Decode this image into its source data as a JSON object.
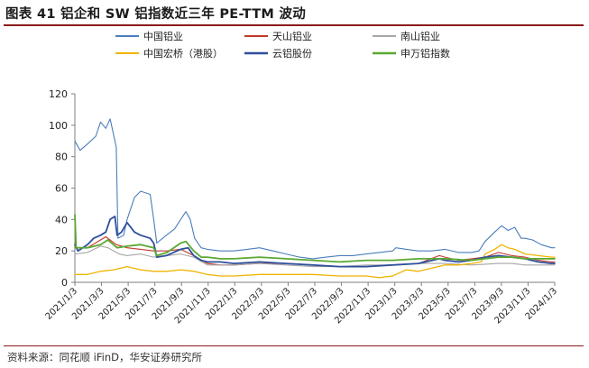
{
  "header": {
    "title": "图表 41 铝企和 SW 铝指数近三年 PE-TTM 波动"
  },
  "footer": {
    "source": "资料来源：同花顺 iFinD，华安证券研究所"
  },
  "chart_data": {
    "type": "line",
    "title": "",
    "xlabel": "",
    "ylabel": "",
    "ylim": [
      0,
      120
    ],
    "y_ticks": [
      0,
      20,
      40,
      60,
      80,
      100,
      120
    ],
    "x_tick_labels": [
      "2021/1/3",
      "2021/3/3",
      "2021/5/3",
      "2021/7/3",
      "2021/9/3",
      "2021/11/3",
      "2022/1/3",
      "2022/3/3",
      "2022/5/3",
      "2022/7/3",
      "2022/9/3",
      "2022/11/3",
      "2023/1/3",
      "2023/3/3",
      "2023/5/3",
      "2023/7/3",
      "2023/9/3",
      "2023/11/3",
      "2024/1/3"
    ],
    "grid": false,
    "legend_position": "top",
    "series": [
      {
        "name": "中国铝业",
        "color": "#4a7ebb",
        "width": 1.1,
        "points": [
          [
            "2021/1/3",
            90
          ],
          [
            "2021/1/15",
            84
          ],
          [
            "2021/2/1",
            88
          ],
          [
            "2021/2/20",
            93
          ],
          [
            "2021/3/3",
            102
          ],
          [
            "2021/3/15",
            98
          ],
          [
            "2021/3/25",
            104
          ],
          [
            "2021/4/8",
            86
          ],
          [
            "2021/4/12",
            28
          ],
          [
            "2021/4/25",
            30
          ],
          [
            "2021/5/3",
            40
          ],
          [
            "2021/5/20",
            54
          ],
          [
            "2021/6/3",
            58
          ],
          [
            "2021/6/25",
            56
          ],
          [
            "2021/7/3",
            40
          ],
          [
            "2021/7/10",
            25
          ],
          [
            "2021/8/1",
            30
          ],
          [
            "2021/8/20",
            34
          ],
          [
            "2021/9/3",
            40
          ],
          [
            "2021/9/15",
            45
          ],
          [
            "2021/9/25",
            40
          ],
          [
            "2021/10/5",
            28
          ],
          [
            "2021/10/20",
            22
          ],
          [
            "2021/11/3",
            21
          ],
          [
            "2021/12/3",
            20
          ],
          [
            "2022/1/3",
            20
          ],
          [
            "2022/2/3",
            21
          ],
          [
            "2022/3/3",
            22
          ],
          [
            "2022/4/3",
            20
          ],
          [
            "2022/5/3",
            18
          ],
          [
            "2022/6/3",
            16
          ],
          [
            "2022/7/3",
            15
          ],
          [
            "2022/8/3",
            16
          ],
          [
            "2022/9/3",
            17
          ],
          [
            "2022/10/3",
            17
          ],
          [
            "2022/11/3",
            18
          ],
          [
            "2022/12/3",
            19
          ],
          [
            "2023/1/3",
            20
          ],
          [
            "2023/1/10",
            22
          ],
          [
            "2023/2/3",
            21
          ],
          [
            "2023/3/3",
            20
          ],
          [
            "2023/4/3",
            20
          ],
          [
            "2023/5/3",
            21
          ],
          [
            "2023/6/3",
            19
          ],
          [
            "2023/7/3",
            19
          ],
          [
            "2023/7/20",
            20
          ],
          [
            "2023/8/3",
            26
          ],
          [
            "2023/8/25",
            32
          ],
          [
            "2023/9/10",
            36
          ],
          [
            "2023/9/25",
            33
          ],
          [
            "2023/10/10",
            35
          ],
          [
            "2023/10/25",
            28
          ],
          [
            "2023/11/3",
            28
          ],
          [
            "2023/11/20",
            27
          ],
          [
            "2023/12/10",
            24
          ],
          [
            "2024/1/3",
            22
          ],
          [
            "2024/1/10",
            22
          ]
        ]
      },
      {
        "name": "天山铝业",
        "color": "#c0392b",
        "width": 1.1,
        "points": [
          [
            "2021/1/3",
            22
          ],
          [
            "2021/2/1",
            22
          ],
          [
            "2021/3/3",
            27
          ],
          [
            "2021/3/15",
            29
          ],
          [
            "2021/4/8",
            24
          ],
          [
            "2021/5/3",
            22
          ],
          [
            "2021/6/3",
            21
          ],
          [
            "2021/7/3",
            20
          ],
          [
            "2021/8/3",
            20
          ],
          [
            "2021/9/3",
            21
          ],
          [
            "2021/10/3",
            17
          ],
          [
            "2021/11/3",
            12
          ],
          [
            "2021/12/3",
            11
          ],
          [
            "2022/1/3",
            11
          ],
          [
            "2022/3/3",
            12
          ],
          [
            "2022/5/3",
            12
          ],
          [
            "2022/7/3",
            11
          ],
          [
            "2022/9/3",
            10
          ],
          [
            "2022/11/3",
            10
          ],
          [
            "2023/1/3",
            11
          ],
          [
            "2023/3/3",
            12
          ],
          [
            "2023/4/20",
            17
          ],
          [
            "2023/5/3",
            16
          ],
          [
            "2023/6/3",
            14
          ],
          [
            "2023/7/3",
            15
          ],
          [
            "2023/8/3",
            16
          ],
          [
            "2023/9/3",
            19
          ],
          [
            "2023/10/3",
            17
          ],
          [
            "2023/11/3",
            16
          ],
          [
            "2023/12/3",
            14
          ],
          [
            "2024/1/3",
            13
          ],
          [
            "2024/1/10",
            13
          ]
        ]
      },
      {
        "name": "南山铝业",
        "color": "#a6a6a6",
        "width": 1.1,
        "points": [
          [
            "2021/1/3",
            18
          ],
          [
            "2021/2/1",
            19
          ],
          [
            "2021/3/3",
            23
          ],
          [
            "2021/3/20",
            22
          ],
          [
            "2021/4/15",
            18
          ],
          [
            "2021/5/3",
            17
          ],
          [
            "2021/6/3",
            18
          ],
          [
            "2021/7/3",
            16
          ],
          [
            "2021/8/3",
            17
          ],
          [
            "2021/9/3",
            18
          ],
          [
            "2021/10/3",
            16
          ],
          [
            "2021/11/3",
            11
          ],
          [
            "2021/12/3",
            11
          ],
          [
            "2022/1/3",
            11
          ],
          [
            "2022/3/3",
            12
          ],
          [
            "2022/5/3",
            11
          ],
          [
            "2022/7/3",
            10
          ],
          [
            "2022/9/3",
            10
          ],
          [
            "2022/11/3",
            11
          ],
          [
            "2023/1/3",
            11
          ],
          [
            "2023/3/3",
            12
          ],
          [
            "2023/5/3",
            12
          ],
          [
            "2023/7/3",
            11
          ],
          [
            "2023/9/3",
            12
          ],
          [
            "2023/10/3",
            12
          ],
          [
            "2023/11/3",
            11
          ],
          [
            "2023/12/3",
            11
          ],
          [
            "2024/1/3",
            11
          ],
          [
            "2024/1/10",
            11
          ]
        ]
      },
      {
        "name": "中国宏桥（港股）",
        "color": "#f0b400",
        "width": 1.3,
        "points": [
          [
            "2021/1/3",
            5
          ],
          [
            "2021/2/1",
            5
          ],
          [
            "2021/3/3",
            7
          ],
          [
            "2021/4/3",
            8
          ],
          [
            "2021/5/3",
            10
          ],
          [
            "2021/6/3",
            8
          ],
          [
            "2021/7/3",
            7
          ],
          [
            "2021/8/3",
            7
          ],
          [
            "2021/9/3",
            8
          ],
          [
            "2021/10/3",
            7
          ],
          [
            "2021/11/3",
            5
          ],
          [
            "2021/12/3",
            4
          ],
          [
            "2022/1/3",
            4
          ],
          [
            "2022/3/3",
            5
          ],
          [
            "2022/5/3",
            5
          ],
          [
            "2022/7/3",
            5
          ],
          [
            "2022/9/3",
            4
          ],
          [
            "2022/11/3",
            4
          ],
          [
            "2022/12/3",
            3
          ],
          [
            "2023/1/3",
            4
          ],
          [
            "2023/1/10",
            5
          ],
          [
            "2023/2/3",
            8
          ],
          [
            "2023/3/3",
            7
          ],
          [
            "2023/4/3",
            9
          ],
          [
            "2023/5/3",
            11
          ],
          [
            "2023/6/3",
            11
          ],
          [
            "2023/7/3",
            12
          ],
          [
            "2023/7/25",
            13
          ],
          [
            "2023/8/3",
            18
          ],
          [
            "2023/8/25",
            21
          ],
          [
            "2023/9/10",
            24
          ],
          [
            "2023/9/25",
            22
          ],
          [
            "2023/10/10",
            21
          ],
          [
            "2023/11/3",
            18
          ],
          [
            "2023/12/3",
            17
          ],
          [
            "2024/1/3",
            16
          ],
          [
            "2024/1/10",
            16
          ]
        ]
      },
      {
        "name": "云铝股份",
        "color": "#2e4f9c",
        "width": 1.8,
        "points": [
          [
            "2021/1/3",
            24
          ],
          [
            "2021/1/10",
            20
          ],
          [
            "2021/2/1",
            24
          ],
          [
            "2021/2/15",
            28
          ],
          [
            "2021/3/3",
            30
          ],
          [
            "2021/3/15",
            32
          ],
          [
            "2021/3/25",
            40
          ],
          [
            "2021/4/5",
            42
          ],
          [
            "2021/4/10",
            30
          ],
          [
            "2021/4/20",
            32
          ],
          [
            "2021/5/3",
            38
          ],
          [
            "2021/5/20",
            32
          ],
          [
            "2021/6/3",
            30
          ],
          [
            "2021/6/25",
            28
          ],
          [
            "2021/7/3",
            25
          ],
          [
            "2021/7/10",
            16
          ],
          [
            "2021/8/1",
            17
          ],
          [
            "2021/9/3",
            21
          ],
          [
            "2021/9/20",
            22
          ],
          [
            "2021/10/3",
            17
          ],
          [
            "2021/10/20",
            14
          ],
          [
            "2021/11/3",
            13
          ],
          [
            "2021/12/3",
            13
          ],
          [
            "2022/1/3",
            12
          ],
          [
            "2022/3/3",
            13
          ],
          [
            "2022/5/3",
            12
          ],
          [
            "2022/7/3",
            11
          ],
          [
            "2022/9/3",
            10
          ],
          [
            "2022/11/3",
            10
          ],
          [
            "2023/1/3",
            11
          ],
          [
            "2023/3/3",
            12
          ],
          [
            "2023/4/20",
            15
          ],
          [
            "2023/5/3",
            14
          ],
          [
            "2023/6/3",
            13
          ],
          [
            "2023/7/3",
            14
          ],
          [
            "2023/8/3",
            16
          ],
          [
            "2023/9/3",
            17
          ],
          [
            "2023/10/3",
            16
          ],
          [
            "2023/11/3",
            15
          ],
          [
            "2023/12/3",
            13
          ],
          [
            "2024/1/3",
            12
          ],
          [
            "2024/1/10",
            12
          ]
        ]
      },
      {
        "name": "申万铝指数",
        "color": "#5aa832",
        "width": 1.8,
        "points": [
          [
            "2021/1/3",
            43
          ],
          [
            "2021/1/6",
            22
          ],
          [
            "2021/2/1",
            22
          ],
          [
            "2021/3/3",
            24
          ],
          [
            "2021/3/20",
            27
          ],
          [
            "2021/4/10",
            22
          ],
          [
            "2021/5/3",
            23
          ],
          [
            "2021/6/3",
            24
          ],
          [
            "2021/7/3",
            22
          ],
          [
            "2021/7/10",
            17
          ],
          [
            "2021/8/3",
            19
          ],
          [
            "2021/9/3",
            25
          ],
          [
            "2021/9/15",
            26
          ],
          [
            "2021/10/3",
            20
          ],
          [
            "2021/10/20",
            16
          ],
          [
            "2021/11/3",
            16
          ],
          [
            "2021/12/3",
            15
          ],
          [
            "2022/1/3",
            15
          ],
          [
            "2022/3/3",
            16
          ],
          [
            "2022/5/3",
            15
          ],
          [
            "2022/7/3",
            14
          ],
          [
            "2022/9/3",
            13
          ],
          [
            "2022/11/3",
            14
          ],
          [
            "2023/1/3",
            14
          ],
          [
            "2023/3/3",
            15
          ],
          [
            "2023/5/3",
            15
          ],
          [
            "2023/7/3",
            14
          ],
          [
            "2023/8/3",
            15
          ],
          [
            "2023/9/3",
            16
          ],
          [
            "2023/10/3",
            16
          ],
          [
            "2023/11/3",
            15
          ],
          [
            "2023/12/3",
            15
          ],
          [
            "2024/1/3",
            15
          ],
          [
            "2024/1/10",
            15
          ]
        ]
      }
    ]
  }
}
